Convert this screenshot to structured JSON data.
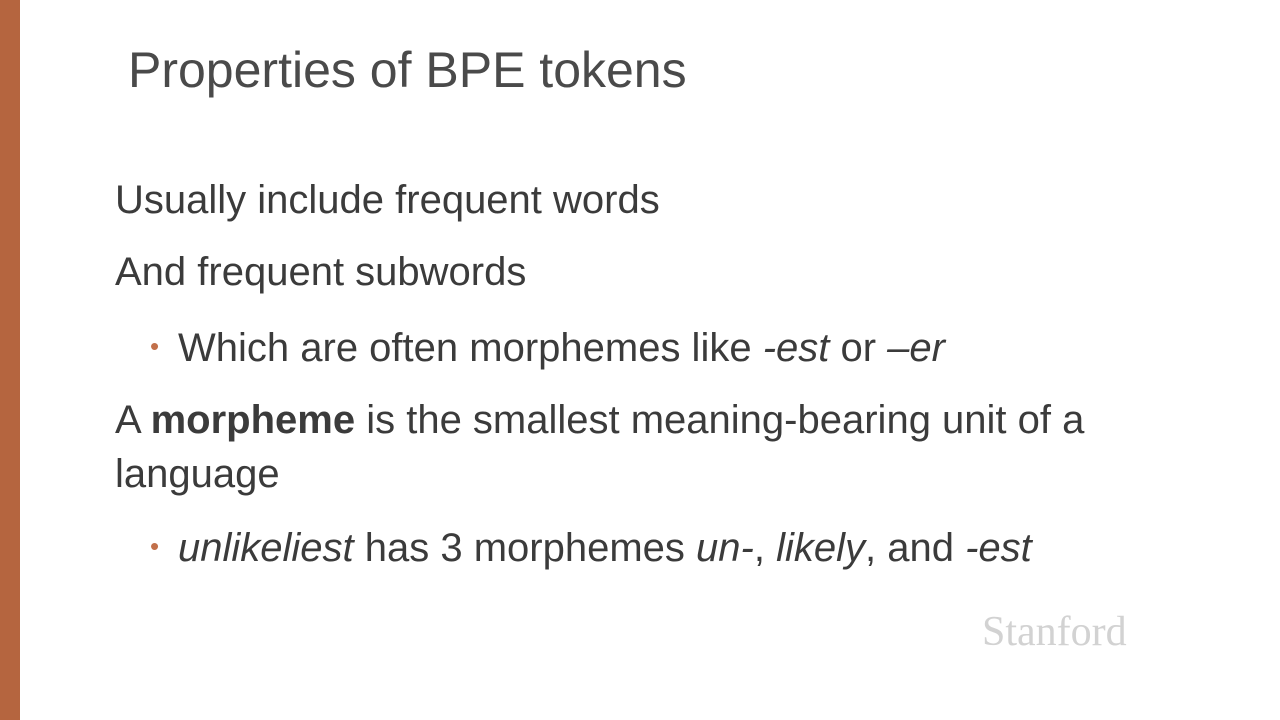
{
  "slide": {
    "title": "Properties of BPE tokens",
    "line1": "Usually include frequent words",
    "line2": "And frequent subwords",
    "bullet1": {
      "marker": "•",
      "text": "Which are often morphemes like ",
      "suffix1": "-est",
      "connector": " or ",
      "suffix2": "–er"
    },
    "definition": {
      "prefix": "A ",
      "term": "morpheme",
      "rest": " is the smallest meaning-bearing unit of a",
      "continuation": "language"
    },
    "bullet2": {
      "marker": "•",
      "word": "unlikeliest",
      "text": " has 3 morphemes ",
      "morpheme1": "un-",
      "sep1": ", ",
      "morpheme2": "likely",
      "sep2": ", and ",
      "morpheme3": "-est"
    },
    "logo": "Stanford"
  },
  "colors": {
    "accent": "#b5653f",
    "bullet": "#c2704a",
    "text": "#3b3b3b",
    "logo": "#d2d2d2"
  }
}
